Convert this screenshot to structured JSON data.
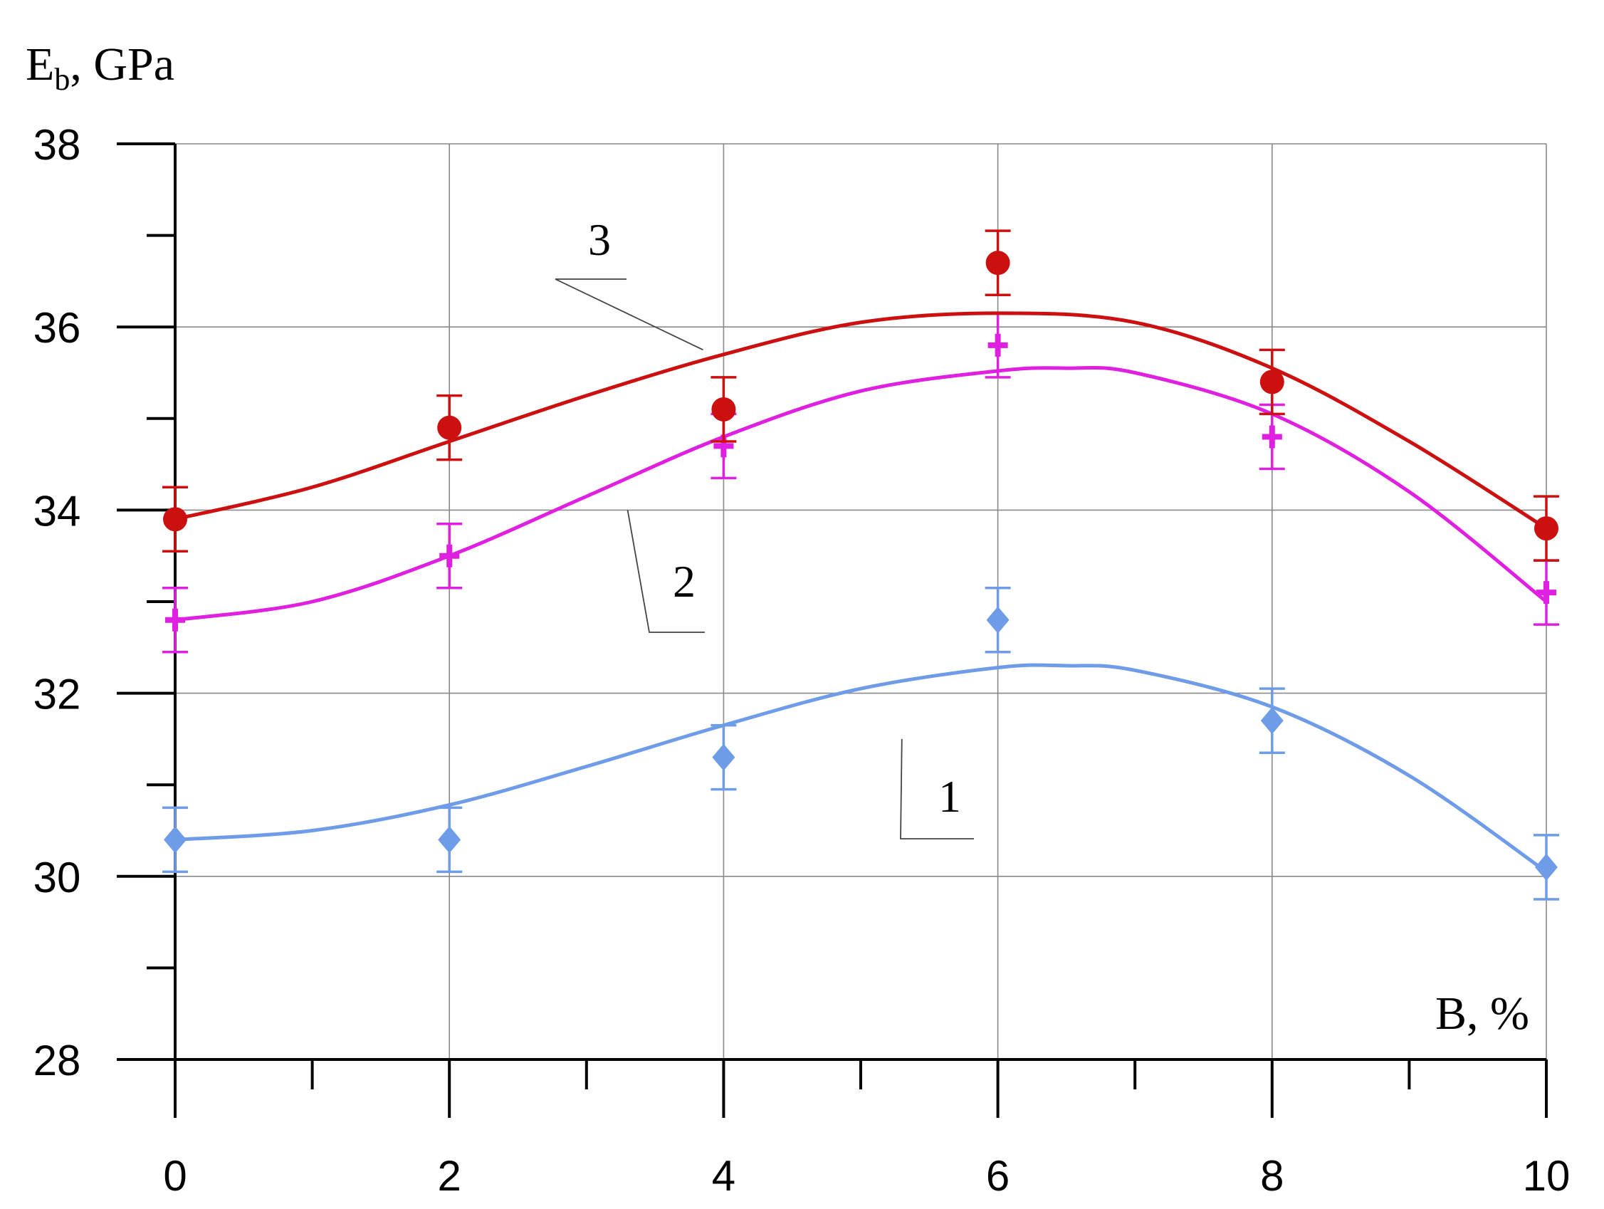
{
  "chart_data": {
    "type": "line",
    "ylabel": "E",
    "ylabel_sub": "b",
    "ylabel_unit": ", GPa",
    "xlabel": "B, %",
    "xlim": [
      0,
      10
    ],
    "ylim": [
      28,
      38
    ],
    "x_ticks": [
      0,
      2,
      4,
      6,
      8,
      10
    ],
    "x_minor_ticks": [
      1,
      3,
      5,
      7,
      9
    ],
    "y_ticks": [
      28,
      30,
      32,
      34,
      36,
      38
    ],
    "y_minor_ticks": [
      29,
      31,
      33,
      35,
      37
    ],
    "grid": true,
    "error_bar": 0.35,
    "series": [
      {
        "name": "1",
        "color": "#6f9ce8",
        "marker": "diamond",
        "x": [
          0,
          2,
          4,
          6,
          8,
          10
        ],
        "y": [
          30.4,
          30.4,
          31.3,
          32.8,
          31.7,
          30.1
        ],
        "fit_curve": [
          [
            0,
            30.4
          ],
          [
            1,
            30.5
          ],
          [
            2,
            30.78
          ],
          [
            3,
            31.2
          ],
          [
            4,
            31.65
          ],
          [
            5,
            32.05
          ],
          [
            6,
            32.28
          ],
          [
            6.5,
            32.3
          ],
          [
            7,
            32.25
          ],
          [
            8,
            31.85
          ],
          [
            9,
            31.1
          ],
          [
            10,
            30.05
          ]
        ],
        "label_point": [
          5.3,
          31.5
        ]
      },
      {
        "name": "2",
        "color": "#e020e0",
        "marker": "plus",
        "x": [
          0,
          2,
          4,
          6,
          8,
          10
        ],
        "y": [
          32.8,
          33.5,
          34.7,
          35.8,
          34.8,
          33.1
        ],
        "fit_curve": [
          [
            0,
            32.8
          ],
          [
            1,
            33.0
          ],
          [
            2,
            33.5
          ],
          [
            3,
            34.15
          ],
          [
            4,
            34.8
          ],
          [
            5,
            35.3
          ],
          [
            6,
            35.52
          ],
          [
            6.5,
            35.55
          ],
          [
            7,
            35.5
          ],
          [
            8,
            35.05
          ],
          [
            9,
            34.2
          ],
          [
            10,
            33.0
          ]
        ],
        "label_point": [
          3.3,
          34.0
        ]
      },
      {
        "name": "3",
        "color": "#cc1010",
        "marker": "circle",
        "x": [
          0,
          2,
          4,
          6,
          8,
          10
        ],
        "y": [
          33.9,
          34.9,
          35.1,
          36.7,
          35.4,
          33.8
        ],
        "fit_curve": [
          [
            0,
            33.9
          ],
          [
            1,
            34.25
          ],
          [
            2,
            34.75
          ],
          [
            3,
            35.25
          ],
          [
            4,
            35.7
          ],
          [
            5,
            36.05
          ],
          [
            6,
            36.15
          ],
          [
            7,
            36.05
          ],
          [
            8,
            35.55
          ],
          [
            9,
            34.75
          ],
          [
            10,
            33.8
          ]
        ],
        "label_point": [
          3.85,
          35.75
        ]
      }
    ]
  }
}
